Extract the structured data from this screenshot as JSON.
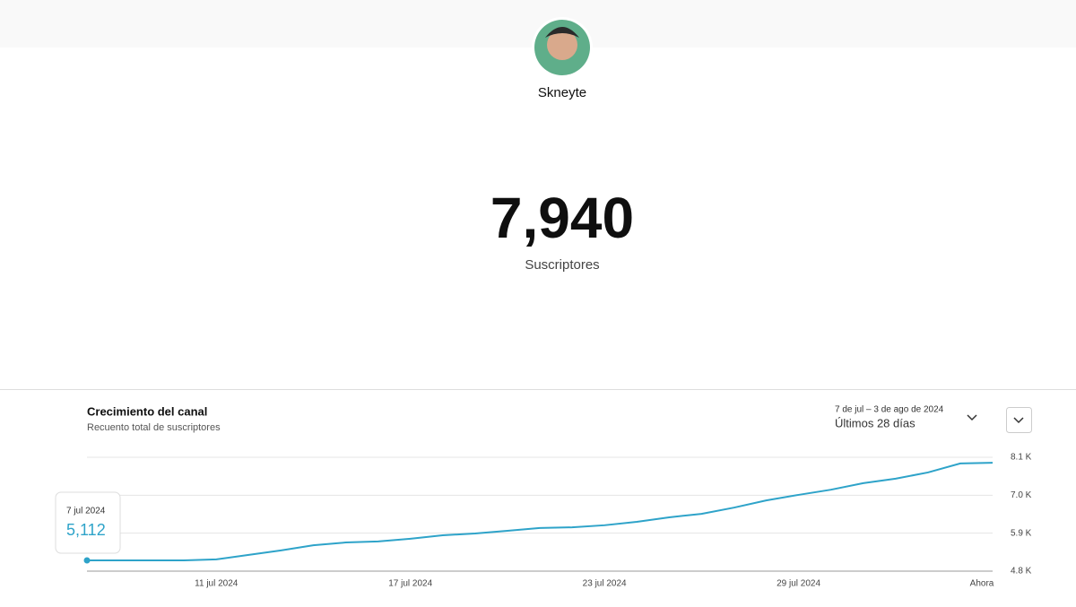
{
  "header": {
    "name": "Skneyte",
    "subscribers": "7,940",
    "subscribers_label": "Suscriptores"
  },
  "chart_data": {
    "type": "line",
    "title": "Crecimiento del canal",
    "subtitle": "Recuento total de suscriptores",
    "date_range": "7 de jul – 3 de ago de 2024",
    "period": "Últimos 28 días",
    "categories": [
      null,
      null,
      null,
      null,
      "11 jul 2024",
      null,
      null,
      null,
      null,
      null,
      "17 jul 2024",
      null,
      null,
      null,
      null,
      null,
      "23 jul 2024",
      null,
      null,
      null,
      null,
      null,
      "29 jul 2024",
      null,
      null,
      null,
      null,
      null,
      "Ahora"
    ],
    "values": [
      5112,
      5112,
      5112,
      5112,
      5140,
      5270,
      5400,
      5550,
      5630,
      5660,
      5740,
      5840,
      5890,
      5970,
      6050,
      6070,
      6130,
      6230,
      6360,
      6460,
      6640,
      6850,
      7010,
      7160,
      7350,
      7480,
      7660,
      7920,
      7940
    ],
    "color": "#2ea3c9",
    "ylim": [
      4800,
      8100
    ],
    "yticks": [
      {
        "value": 4800,
        "label": "4.8 K"
      },
      {
        "value": 5900,
        "label": "5.9 K"
      },
      {
        "value": 7000,
        "label": "7.0 K"
      },
      {
        "value": 8100,
        "label": "8.1 K"
      }
    ],
    "grid": true,
    "tooltip": {
      "date": "7 jul 2024",
      "value": "5,112"
    }
  }
}
